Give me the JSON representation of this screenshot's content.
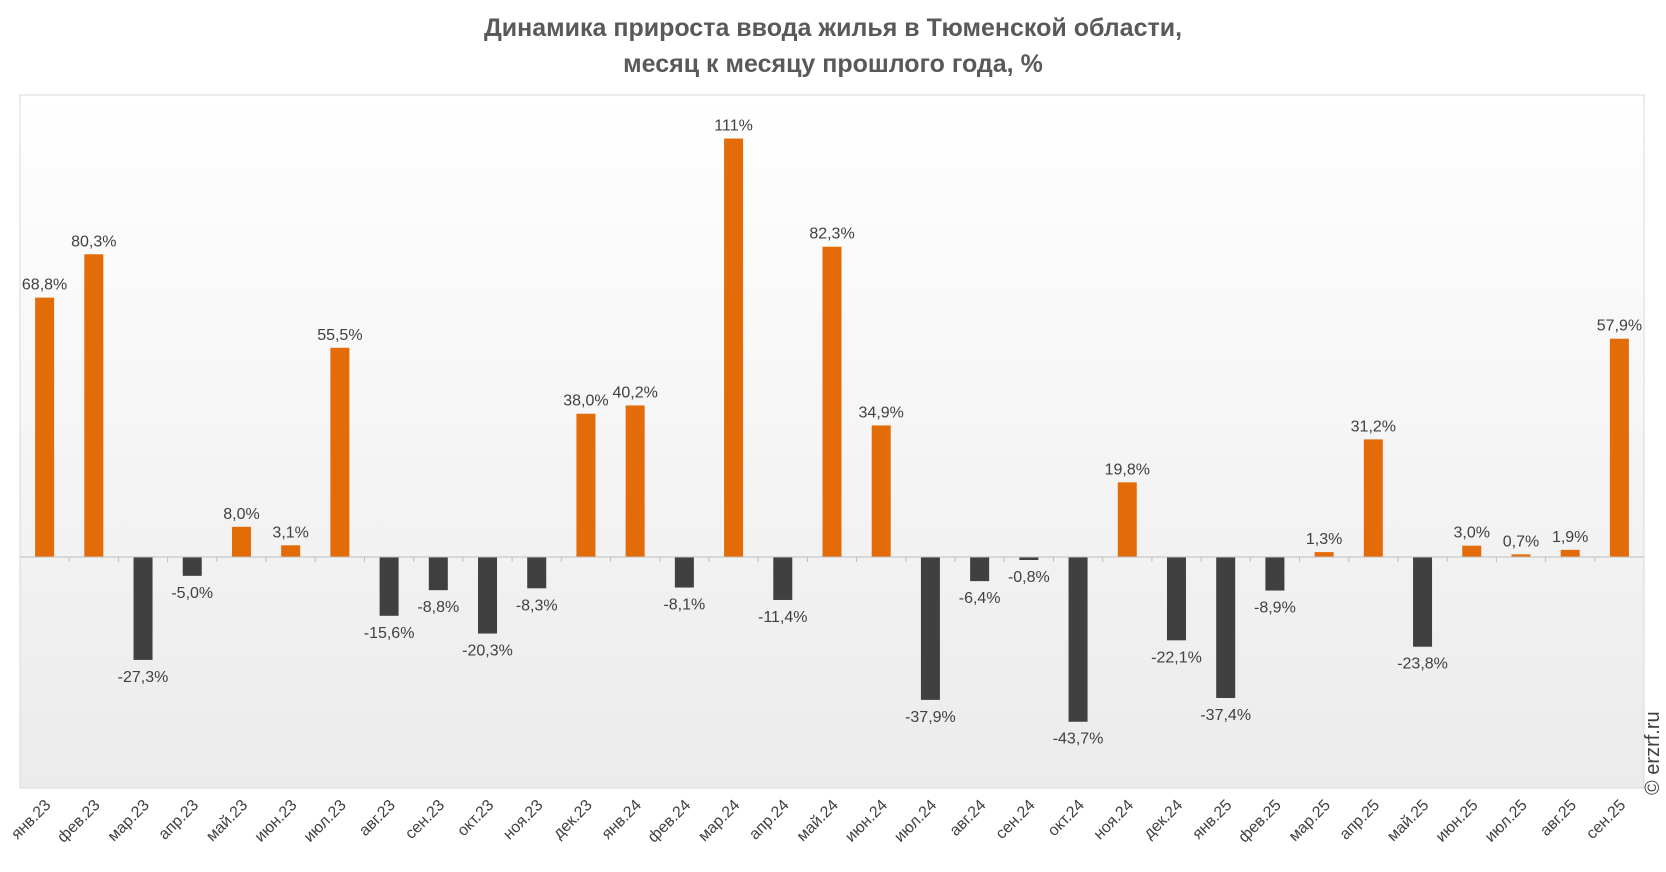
{
  "chart_data": {
    "type": "bar",
    "title": [
      "Динамика прироста ввода жилья в Тюменской области,",
      "месяц к месяцу прошлого года, %"
    ],
    "categories": [
      "янв.23",
      "фев.23",
      "мар.23",
      "апр.23",
      "май.23",
      "июн.23",
      "июл.23",
      "авг.23",
      "сен.23",
      "окт.23",
      "ноя.23",
      "дек.23",
      "янв.24",
      "фев.24",
      "мар.24",
      "апр.24",
      "май.24",
      "июн.24",
      "июл.24",
      "авг.24",
      "сен.24",
      "окт.24",
      "ноя.24",
      "дек.24",
      "янв.25",
      "фев.25",
      "мар.25",
      "апр.25",
      "май.25",
      "июн.25",
      "июл.25",
      "авг.25",
      "сен.25"
    ],
    "values": [
      68.8,
      80.3,
      -27.3,
      -5.0,
      8.0,
      3.1,
      55.5,
      -15.6,
      -8.8,
      -20.3,
      -8.3,
      38.0,
      40.2,
      -8.1,
      111,
      -11.4,
      82.3,
      34.9,
      -37.9,
      -6.4,
      -0.8,
      -43.7,
      19.8,
      -22.1,
      -37.4,
      -8.9,
      1.3,
      31.2,
      -23.8,
      3.0,
      0.7,
      1.9,
      57.9
    ],
    "labels": [
      "68,8%",
      "80,3%",
      "-27,3%",
      "-5,0%",
      "8,0%",
      "3,1%",
      "55,5%",
      "-15,6%",
      "-8,8%",
      "-20,3%",
      "-8,3%",
      "38,0%",
      "40,2%",
      "-8,1%",
      "111%",
      "-11,4%",
      "82,3%",
      "34,9%",
      "-37,9%",
      "-6,4%",
      "-0,8%",
      "-43,7%",
      "19,8%",
      "-22,1%",
      "-37,4%",
      "-8,9%",
      "1,3%",
      "31,2%",
      "-23,8%",
      "3,0%",
      "0,7%",
      "1,9%",
      "57,9%"
    ],
    "ylim": [
      -60,
      115
    ],
    "grid": false,
    "colors": {
      "positive": "#e36c09",
      "negative": "#404040"
    }
  },
  "watermark": "© erzrf.ru"
}
